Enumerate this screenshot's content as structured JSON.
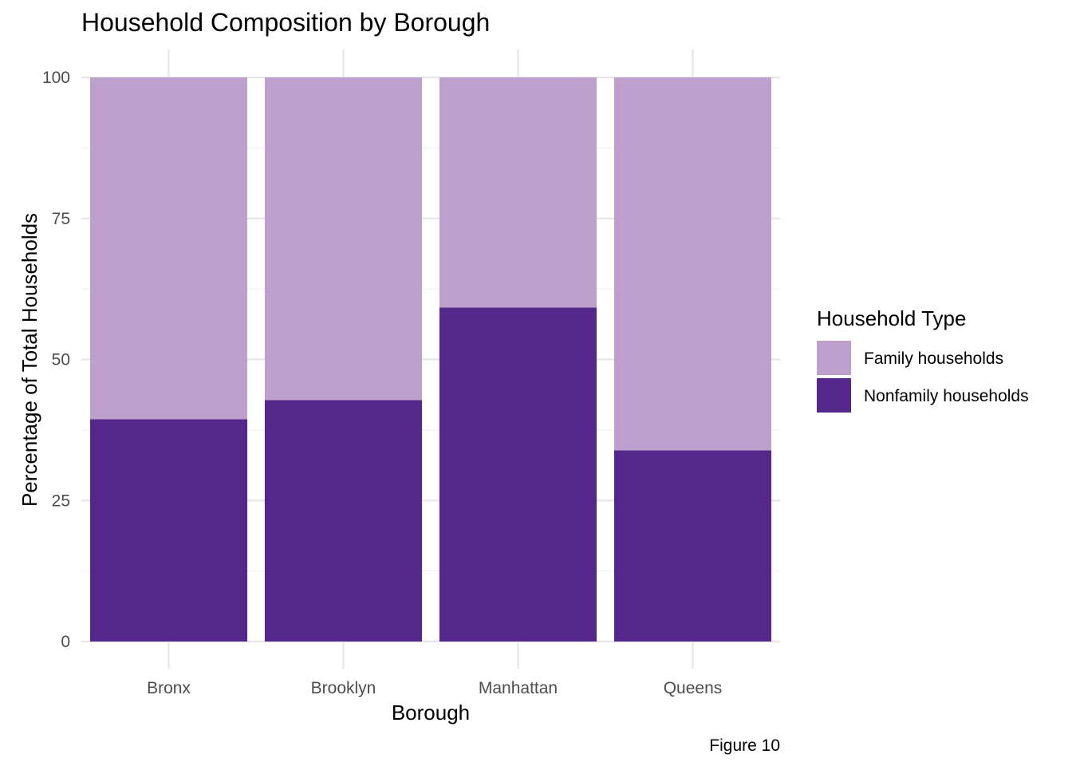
{
  "chart_data": {
    "type": "bar",
    "stacked": true,
    "title": "Household Composition by Borough",
    "xlabel": "Borough",
    "ylabel": "Percentage of Total Households",
    "caption": "Figure 10",
    "categories": [
      "Bronx",
      "Brooklyn",
      "Manhattan",
      "Queens"
    ],
    "series": [
      {
        "name": "Nonfamily households",
        "color": "#54288a",
        "values": [
          39.4,
          42.8,
          59.2,
          33.9
        ]
      },
      {
        "name": "Family households",
        "color": "#bda1cc",
        "values": [
          60.6,
          57.2,
          40.8,
          66.1
        ]
      }
    ],
    "ylim": [
      0,
      100
    ],
    "yticks": [
      0,
      25,
      50,
      75,
      100
    ],
    "grid": true,
    "legend": {
      "title": "Household Type",
      "position": "right",
      "entries": [
        {
          "label": "Family households",
          "color": "#bda1cc"
        },
        {
          "label": "Nonfamily households",
          "color": "#54288a"
        }
      ]
    }
  }
}
